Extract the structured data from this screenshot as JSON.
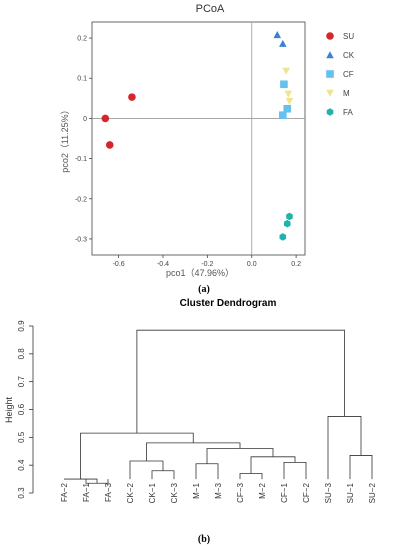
{
  "chart_data": [
    {
      "type": "scatter",
      "title": "PCoA",
      "xlabel": "pco1（47.96%）",
      "ylabel": "pco2（11.25%）",
      "xlim": [
        -0.72,
        0.24
      ],
      "ylim": [
        -0.34,
        0.24
      ],
      "x_ticks": [
        -0.6,
        -0.4,
        -0.2,
        0.0,
        0.2
      ],
      "x_tick_labels": [
        "-0.6",
        "-0.4",
        "-0.2",
        "0.0",
        "0.2"
      ],
      "y_ticks": [
        0.2,
        0.1,
        0.0,
        -0.1,
        -0.2,
        -0.3
      ],
      "y_tick_labels": [
        "0.2",
        "0.1",
        "0",
        "-0.1",
        "-0.2",
        "-0.3"
      ],
      "reference_lines": {
        "x": 0,
        "y": 0
      },
      "legend_position": "right",
      "series": [
        {
          "name": "SU",
          "marker": "circle",
          "color": "#d7262b",
          "points": [
            [
              -0.54,
              0.053
            ],
            [
              -0.66,
              0.0
            ],
            [
              -0.64,
              -0.066
            ]
          ]
        },
        {
          "name": "CK",
          "marker": "triangle-up",
          "color": "#3b82d6",
          "points": [
            [
              0.115,
              0.208
            ],
            [
              0.14,
              0.186
            ]
          ]
        },
        {
          "name": "CF",
          "marker": "square",
          "color": "#64c1ee",
          "points": [
            [
              0.145,
              0.085
            ],
            [
              0.16,
              0.024
            ],
            [
              0.14,
              0.008
            ]
          ]
        },
        {
          "name": "M",
          "marker": "triangle-down",
          "color": "#ede58f",
          "points": [
            [
              0.155,
              0.118
            ],
            [
              0.165,
              0.061
            ],
            [
              0.17,
              0.043
            ]
          ]
        },
        {
          "name": "FA",
          "marker": "hexagon",
          "color": "#1fb3ab",
          "points": [
            [
              0.17,
              -0.244
            ],
            [
              0.16,
              -0.262
            ],
            [
              0.14,
              -0.295
            ]
          ]
        }
      ]
    },
    {
      "type": "dendrogram",
      "title": "Cluster Dendrogram",
      "ylabel": "Height",
      "ylim": [
        0.3,
        0.9
      ],
      "y_ticks": [
        0.3,
        0.4,
        0.5,
        0.6,
        0.7,
        0.8,
        0.9
      ],
      "y_tick_labels": [
        "0.3",
        "0.4",
        "0.5",
        "0.6",
        "0.7",
        "0.8",
        "0.9"
      ],
      "leaves": [
        "FA−2",
        "FA−1",
        "FA−3",
        "CK−2",
        "CK−1",
        "CK−3",
        "M−1",
        "M−3",
        "CF−3",
        "M−2",
        "CF−1",
        "CF−2",
        "SU−3",
        "SU−1",
        "SU−2"
      ],
      "merges": [
        {
          "children": [
            1,
            2
          ],
          "height": 0.335
        },
        {
          "children": [
            0,
            "m0"
          ],
          "height": 0.35
        },
        {
          "children": [
            4,
            5
          ],
          "height": 0.38
        },
        {
          "children": [
            3,
            "m2"
          ],
          "height": 0.415
        },
        {
          "children": [
            6,
            7
          ],
          "height": 0.405
        },
        {
          "children": [
            8,
            9
          ],
          "height": 0.37
        },
        {
          "children": [
            10,
            11
          ],
          "height": 0.41
        },
        {
          "children": [
            "m5",
            "m6"
          ],
          "height": 0.43
        },
        {
          "children": [
            "m4",
            "m7"
          ],
          "height": 0.46
        },
        {
          "children": [
            "m3",
            "m8"
          ],
          "height": 0.48
        },
        {
          "children": [
            "m1",
            "m9"
          ],
          "height": 0.515
        },
        {
          "children": [
            13,
            14
          ],
          "height": 0.435
        },
        {
          "children": [
            12,
            "m11"
          ],
          "height": 0.575
        },
        {
          "children": [
            "m10",
            "m12"
          ],
          "height": 0.885
        }
      ]
    }
  ],
  "captions": {
    "a": "(a)",
    "b": "(b)"
  }
}
